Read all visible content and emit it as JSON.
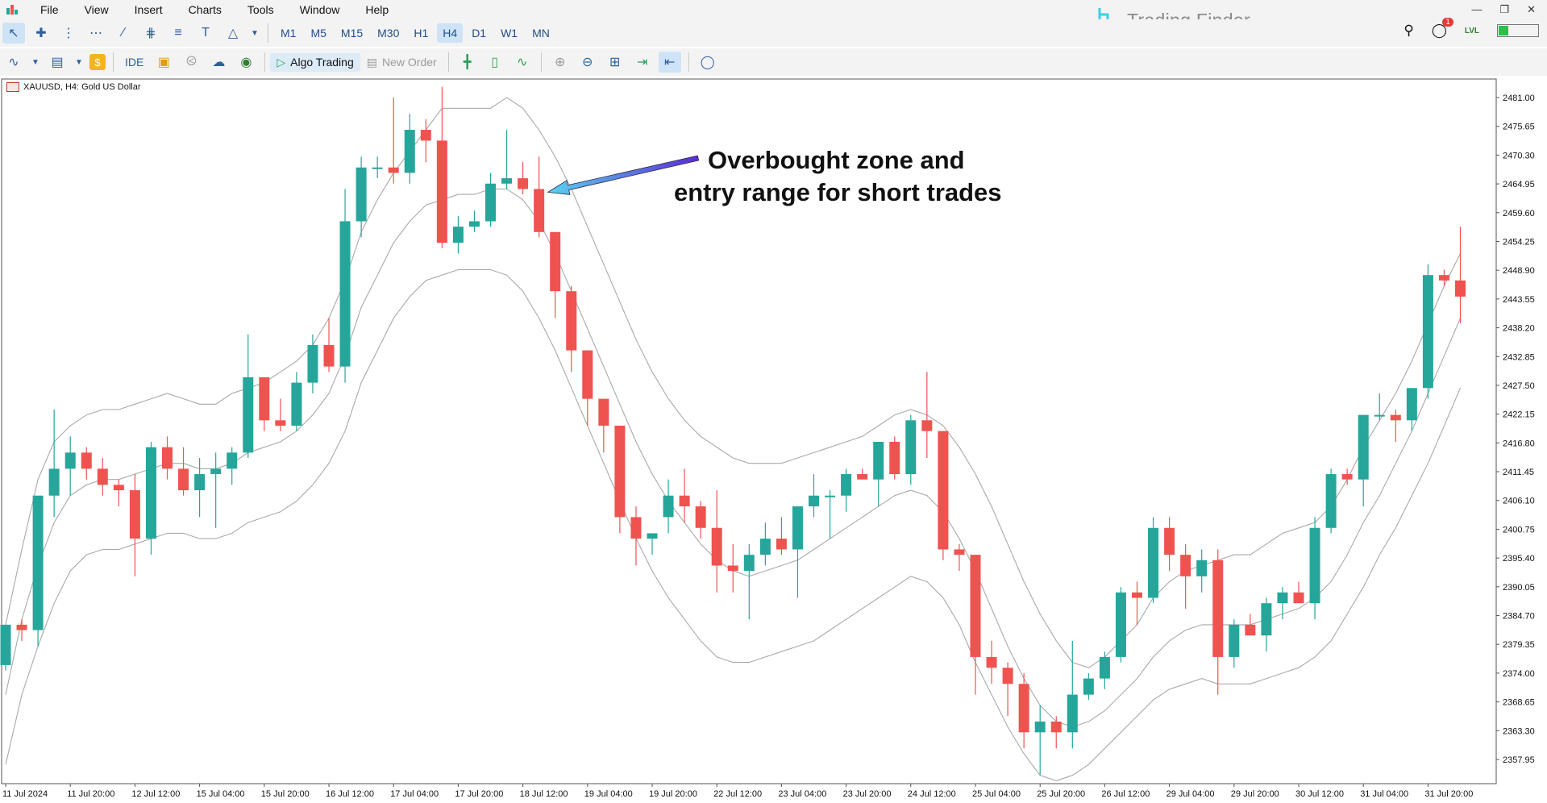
{
  "menu": [
    "File",
    "View",
    "Insert",
    "Charts",
    "Tools",
    "Window",
    "Help"
  ],
  "timeframes": [
    "M1",
    "M5",
    "M15",
    "M30",
    "H1",
    "H4",
    "D1",
    "W1",
    "MN"
  ],
  "active_timeframe": "H4",
  "toolbar2": {
    "ide": "IDE",
    "algo_trading": "Algo Trading",
    "new_order": "New Order"
  },
  "logo": "Trading Finder",
  "notification_count": "1",
  "chart_title": "XAUUSD, H4:  Gold US Dollar",
  "annotation": {
    "line1": "Overbought zone and",
    "line2": "entry range for short trades"
  },
  "chart_data": {
    "type": "candlestick",
    "symbol": "XAUUSD",
    "timeframe": "H4",
    "description": "Gold US Dollar",
    "ylim": [
      2354,
      2484
    ],
    "yticks": [
      "2481.00",
      "2475.65",
      "2470.30",
      "2464.95",
      "2459.60",
      "2454.25",
      "2448.90",
      "2443.55",
      "2438.20",
      "2432.85",
      "2427.50",
      "2422.15",
      "2416.80",
      "2411.45",
      "2406.10",
      "2400.75",
      "2395.40",
      "2390.05",
      "2384.70",
      "2379.35",
      "2374.00",
      "2368.65",
      "2363.30",
      "2357.95"
    ],
    "xticks": [
      {
        "label": "11 Jul 2024",
        "index": 0
      },
      {
        "label": "11 Jul 20:00",
        "index": 4
      },
      {
        "label": "12 Jul 12:00",
        "index": 8
      },
      {
        "label": "15 Jul 04:00",
        "index": 12
      },
      {
        "label": "15 Jul 20:00",
        "index": 16
      },
      {
        "label": "16 Jul 12:00",
        "index": 20
      },
      {
        "label": "17 Jul 04:00",
        "index": 24
      },
      {
        "label": "17 Jul 20:00",
        "index": 28
      },
      {
        "label": "18 Jul 12:00",
        "index": 32
      },
      {
        "label": "19 Jul 04:00",
        "index": 36
      },
      {
        "label": "19 Jul 20:00",
        "index": 40
      },
      {
        "label": "22 Jul 12:00",
        "index": 44
      },
      {
        "label": "23 Jul 04:00",
        "index": 48
      },
      {
        "label": "23 Jul 20:00",
        "index": 52
      },
      {
        "label": "24 Jul 12:00",
        "index": 56
      },
      {
        "label": "25 Jul 04:00",
        "index": 60
      },
      {
        "label": "25 Jul 20:00",
        "index": 64
      },
      {
        "label": "26 Jul 12:00",
        "index": 68
      },
      {
        "label": "29 Jul 04:00",
        "index": 72
      },
      {
        "label": "29 Jul 20:00",
        "index": 76
      },
      {
        "label": "30 Jul 12:00",
        "index": 80
      },
      {
        "label": "31 Jul 04:00",
        "index": 84
      },
      {
        "label": "31 Jul 20:00",
        "index": 88
      }
    ],
    "candles": [
      {
        "o": 2375.5,
        "h": 2383,
        "l": 2374.5,
        "c": 2383
      },
      {
        "o": 2383,
        "h": 2384,
        "l": 2380,
        "c": 2382
      },
      {
        "o": 2382,
        "h": 2406,
        "l": 2379,
        "c": 2407
      },
      {
        "o": 2407,
        "h": 2423,
        "l": 2403,
        "c": 2412
      },
      {
        "o": 2412,
        "h": 2418,
        "l": 2407,
        "c": 2415
      },
      {
        "o": 2415,
        "h": 2416,
        "l": 2410,
        "c": 2412
      },
      {
        "o": 2412,
        "h": 2414,
        "l": 2407,
        "c": 2409
      },
      {
        "o": 2409,
        "h": 2410,
        "l": 2405,
        "c": 2408
      },
      {
        "o": 2408,
        "h": 2411,
        "l": 2392,
        "c": 2399
      },
      {
        "o": 2399,
        "h": 2417,
        "l": 2396,
        "c": 2416
      },
      {
        "o": 2416,
        "h": 2418,
        "l": 2410,
        "c": 2412
      },
      {
        "o": 2412,
        "h": 2416,
        "l": 2407,
        "c": 2408
      },
      {
        "o": 2408,
        "h": 2414,
        "l": 2403,
        "c": 2411
      },
      {
        "o": 2411,
        "h": 2415,
        "l": 2401,
        "c": 2412
      },
      {
        "o": 2412,
        "h": 2416,
        "l": 2409,
        "c": 2415
      },
      {
        "o": 2415,
        "h": 2437,
        "l": 2414,
        "c": 2429
      },
      {
        "o": 2429,
        "h": 2429,
        "l": 2419,
        "c": 2421
      },
      {
        "o": 2421,
        "h": 2425,
        "l": 2419,
        "c": 2420
      },
      {
        "o": 2420,
        "h": 2430,
        "l": 2419,
        "c": 2428
      },
      {
        "o": 2428,
        "h": 2437,
        "l": 2426,
        "c": 2435
      },
      {
        "o": 2435,
        "h": 2440,
        "l": 2430,
        "c": 2431
      },
      {
        "o": 2431,
        "h": 2464,
        "l": 2428,
        "c": 2458
      },
      {
        "o": 2458,
        "h": 2470,
        "l": 2455,
        "c": 2468
      },
      {
        "o": 2468,
        "h": 2470,
        "l": 2466,
        "c": 2468
      },
      {
        "o": 2468,
        "h": 2481,
        "l": 2465,
        "c": 2467
      },
      {
        "o": 2467,
        "h": 2478,
        "l": 2465,
        "c": 2475
      },
      {
        "o": 2475,
        "h": 2477,
        "l": 2469,
        "c": 2473
      },
      {
        "o": 2473,
        "h": 2483,
        "l": 2453,
        "c": 2454
      },
      {
        "o": 2454,
        "h": 2459,
        "l": 2452,
        "c": 2457
      },
      {
        "o": 2457,
        "h": 2460,
        "l": 2456,
        "c": 2458
      },
      {
        "o": 2458,
        "h": 2467,
        "l": 2457,
        "c": 2465
      },
      {
        "o": 2465,
        "h": 2475,
        "l": 2464,
        "c": 2466
      },
      {
        "o": 2466,
        "h": 2469,
        "l": 2463,
        "c": 2464
      },
      {
        "o": 2464,
        "h": 2470,
        "l": 2455,
        "c": 2456
      },
      {
        "o": 2456,
        "h": 2456,
        "l": 2440,
        "c": 2445
      },
      {
        "o": 2445,
        "h": 2446,
        "l": 2430,
        "c": 2434
      },
      {
        "o": 2434,
        "h": 2434,
        "l": 2420,
        "c": 2425
      },
      {
        "o": 2425,
        "h": 2425,
        "l": 2415,
        "c": 2420
      },
      {
        "o": 2420,
        "h": 2420,
        "l": 2400,
        "c": 2403
      },
      {
        "o": 2403,
        "h": 2405,
        "l": 2394,
        "c": 2399
      },
      {
        "o": 2399,
        "h": 2400,
        "l": 2396,
        "c": 2400
      },
      {
        "o": 2403,
        "h": 2410,
        "l": 2400,
        "c": 2407
      },
      {
        "o": 2407,
        "h": 2412,
        "l": 2402,
        "c": 2405
      },
      {
        "o": 2405,
        "h": 2406,
        "l": 2399,
        "c": 2401
      },
      {
        "o": 2401,
        "h": 2408,
        "l": 2389,
        "c": 2394
      },
      {
        "o": 2394,
        "h": 2398,
        "l": 2389,
        "c": 2393
      },
      {
        "o": 2393,
        "h": 2398,
        "l": 2384,
        "c": 2396
      },
      {
        "o": 2396,
        "h": 2402,
        "l": 2394,
        "c": 2399
      },
      {
        "o": 2399,
        "h": 2403,
        "l": 2396,
        "c": 2397
      },
      {
        "o": 2397,
        "h": 2405,
        "l": 2388,
        "c": 2405
      },
      {
        "o": 2405,
        "h": 2411,
        "l": 2403,
        "c": 2407
      },
      {
        "o": 2407,
        "h": 2408,
        "l": 2399,
        "c": 2407
      },
      {
        "o": 2407,
        "h": 2412,
        "l": 2404,
        "c": 2411
      },
      {
        "o": 2411,
        "h": 2412,
        "l": 2410,
        "c": 2410
      },
      {
        "o": 2410,
        "h": 2417,
        "l": 2405,
        "c": 2417
      },
      {
        "o": 2417,
        "h": 2418,
        "l": 2410,
        "c": 2411
      },
      {
        "o": 2411,
        "h": 2422,
        "l": 2409,
        "c": 2421
      },
      {
        "o": 2421,
        "h": 2430,
        "l": 2414,
        "c": 2419
      },
      {
        "o": 2419,
        "h": 2419,
        "l": 2395,
        "c": 2397
      },
      {
        "o": 2397,
        "h": 2398,
        "l": 2393,
        "c": 2396
      },
      {
        "o": 2396,
        "h": 2396,
        "l": 2370,
        "c": 2377
      },
      {
        "o": 2377,
        "h": 2380,
        "l": 2372,
        "c": 2375
      },
      {
        "o": 2375,
        "h": 2376,
        "l": 2366,
        "c": 2372
      },
      {
        "o": 2372,
        "h": 2374,
        "l": 2360,
        "c": 2363
      },
      {
        "o": 2363,
        "h": 2368,
        "l": 2355,
        "c": 2365
      },
      {
        "o": 2365,
        "h": 2366,
        "l": 2360,
        "c": 2363
      },
      {
        "o": 2363,
        "h": 2380,
        "l": 2360,
        "c": 2370
      },
      {
        "o": 2370,
        "h": 2374,
        "l": 2369,
        "c": 2373
      },
      {
        "o": 2373,
        "h": 2378,
        "l": 2371,
        "c": 2377
      },
      {
        "o": 2377,
        "h": 2390,
        "l": 2376,
        "c": 2389
      },
      {
        "o": 2389,
        "h": 2391,
        "l": 2383,
        "c": 2388
      },
      {
        "o": 2388,
        "h": 2403,
        "l": 2387,
        "c": 2401
      },
      {
        "o": 2401,
        "h": 2403,
        "l": 2393,
        "c": 2396
      },
      {
        "o": 2396,
        "h": 2398,
        "l": 2386,
        "c": 2392
      },
      {
        "o": 2392,
        "h": 2397,
        "l": 2389,
        "c": 2395
      },
      {
        "o": 2395,
        "h": 2397,
        "l": 2370,
        "c": 2377
      },
      {
        "o": 2377,
        "h": 2384,
        "l": 2375,
        "c": 2383
      },
      {
        "o": 2383,
        "h": 2385,
        "l": 2381,
        "c": 2381
      },
      {
        "o": 2381,
        "h": 2388,
        "l": 2378,
        "c": 2387
      },
      {
        "o": 2387,
        "h": 2390,
        "l": 2384,
        "c": 2389
      },
      {
        "o": 2389,
        "h": 2391,
        "l": 2387,
        "c": 2387
      },
      {
        "o": 2387,
        "h": 2403,
        "l": 2384,
        "c": 2401
      },
      {
        "o": 2401,
        "h": 2412,
        "l": 2400,
        "c": 2411
      },
      {
        "o": 2411,
        "h": 2412,
        "l": 2409,
        "c": 2410
      },
      {
        "o": 2410,
        "h": 2422,
        "l": 2405,
        "c": 2422
      },
      {
        "o": 2422,
        "h": 2426,
        "l": 2421,
        "c": 2422
      },
      {
        "o": 2422,
        "h": 2423,
        "l": 2417,
        "c": 2421
      },
      {
        "o": 2421,
        "h": 2427,
        "l": 2419,
        "c": 2427
      },
      {
        "o": 2427,
        "h": 2450,
        "l": 2425,
        "c": 2448
      },
      {
        "o": 2448,
        "h": 2449,
        "l": 2446,
        "c": 2447
      },
      {
        "o": 2447,
        "h": 2457,
        "l": 2439,
        "c": 2444
      }
    ],
    "bands": {
      "upper": [
        2383,
        2397,
        2410,
        2417,
        2420,
        2422,
        2423,
        2423,
        2424,
        2425,
        2426,
        2425,
        2424,
        2424,
        2426,
        2427,
        2428,
        2430,
        2432,
        2435,
        2440,
        2447,
        2456,
        2462,
        2467,
        2471,
        2475,
        2479,
        2479,
        2479,
        2479,
        2481,
        2479,
        2475,
        2470,
        2464,
        2457,
        2450,
        2443,
        2436,
        2430,
        2425,
        2421,
        2418,
        2416,
        2414,
        2413,
        2413,
        2413,
        2414,
        2415,
        2416,
        2417,
        2418,
        2420,
        2422,
        2423,
        2422,
        2420,
        2416,
        2411,
        2405,
        2398,
        2391,
        2385,
        2380,
        2376,
        2375,
        2377,
        2380,
        2383,
        2388,
        2391,
        2393,
        2394,
        2395,
        2396,
        2396,
        2398,
        2400,
        2401,
        2402,
        2405,
        2410,
        2416,
        2421,
        2426,
        2432,
        2439,
        2446,
        2452
      ],
      "middle": [
        2370,
        2384,
        2394,
        2402,
        2407,
        2409,
        2410,
        2410,
        2411,
        2412,
        2413,
        2413,
        2412,
        2412,
        2413,
        2415,
        2416,
        2417,
        2419,
        2422,
        2426,
        2433,
        2442,
        2448,
        2454,
        2458,
        2461,
        2462,
        2463,
        2463,
        2464,
        2464,
        2462,
        2458,
        2452,
        2445,
        2438,
        2431,
        2424,
        2417,
        2411,
        2406,
        2402,
        2398,
        2395,
        2393,
        2392,
        2393,
        2394,
        2395,
        2397,
        2399,
        2401,
        2403,
        2405,
        2407,
        2408,
        2407,
        2404,
        2399,
        2393,
        2386,
        2379,
        2373,
        2368,
        2365,
        2364,
        2365,
        2367,
        2370,
        2373,
        2377,
        2380,
        2382,
        2383,
        2383,
        2383,
        2383,
        2384,
        2385,
        2386,
        2388,
        2391,
        2396,
        2402,
        2407,
        2413,
        2419,
        2426,
        2433,
        2440
      ],
      "lower": [
        2357,
        2370,
        2379,
        2387,
        2393,
        2396,
        2397,
        2397,
        2398,
        2399,
        2400,
        2400,
        2399,
        2399,
        2400,
        2402,
        2403,
        2404,
        2406,
        2409,
        2413,
        2419,
        2428,
        2434,
        2440,
        2444,
        2447,
        2448,
        2449,
        2449,
        2449,
        2448,
        2445,
        2440,
        2434,
        2427,
        2420,
        2413,
        2406,
        2399,
        2393,
        2388,
        2384,
        2380,
        2377,
        2376,
        2376,
        2377,
        2378,
        2379,
        2380,
        2382,
        2384,
        2386,
        2388,
        2390,
        2392,
        2391,
        2388,
        2383,
        2376,
        2370,
        2364,
        2359,
        2355,
        2354,
        2355,
        2357,
        2360,
        2363,
        2366,
        2369,
        2371,
        2372,
        2373,
        2372,
        2372,
        2372,
        2373,
        2374,
        2375,
        2377,
        2380,
        2385,
        2390,
        2396,
        2401,
        2407,
        2413,
        2420,
        2427
      ]
    },
    "colors": {
      "bull": "#26a69a",
      "bear": "#ef5350",
      "band": "#a9a9a9",
      "arrow_start": "#5b2bd6",
      "arrow_end": "#5ad2ee"
    },
    "annotation_arrow_target_index": 33
  }
}
